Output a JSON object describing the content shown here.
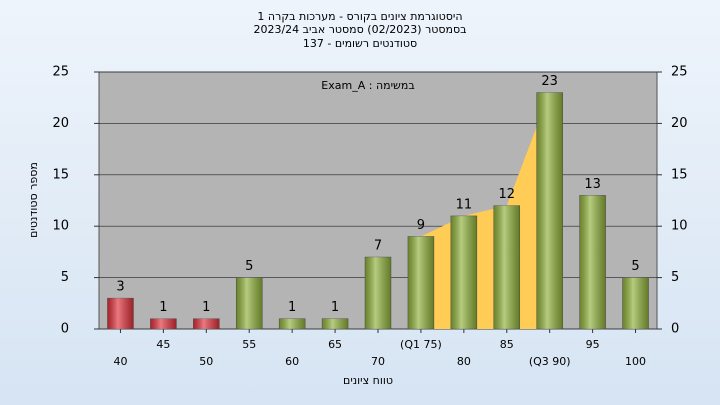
{
  "chart_data": {
    "type": "bar",
    "title": [
      "היסטוגרמת ציונים בקורס - מערכות בקרה 1",
      "בסמסטר  (02/2023)  סמסטר אביב 2023/24",
      "סטודנטים רשומים - 137"
    ],
    "annotation": "Exam_A : במשימה",
    "x_label": "טווח ציונים",
    "y_label": "מספר סטודנטים",
    "categories": [
      "40",
      "45",
      "50",
      "55",
      "60",
      "65",
      "70",
      "(Q1 75)",
      "80",
      "85",
      "(Q3 90)",
      "95",
      "100"
    ],
    "values": [
      3,
      1,
      1,
      5,
      1,
      1,
      7,
      9,
      11,
      12,
      23,
      13,
      5
    ],
    "colors": [
      "#e0303a",
      "#e0303a",
      "#e0303a",
      "#8fb03a",
      "#8fb03a",
      "#8fb03a",
      "#8fb03a",
      "#8fb03a",
      "#8fb03a",
      "#8fb03a",
      "#8fb03a",
      "#8fb03a",
      "#8fb03a"
    ],
    "iqr_color": "#ffcc55",
    "ylim": [
      0,
      25
    ],
    "yticks": [
      0,
      5,
      10,
      15,
      20,
      25
    ],
    "y2lim": [
      0,
      25
    ],
    "y2ticks": [
      0,
      5,
      10,
      15,
      20,
      25
    ],
    "grid": true
  }
}
